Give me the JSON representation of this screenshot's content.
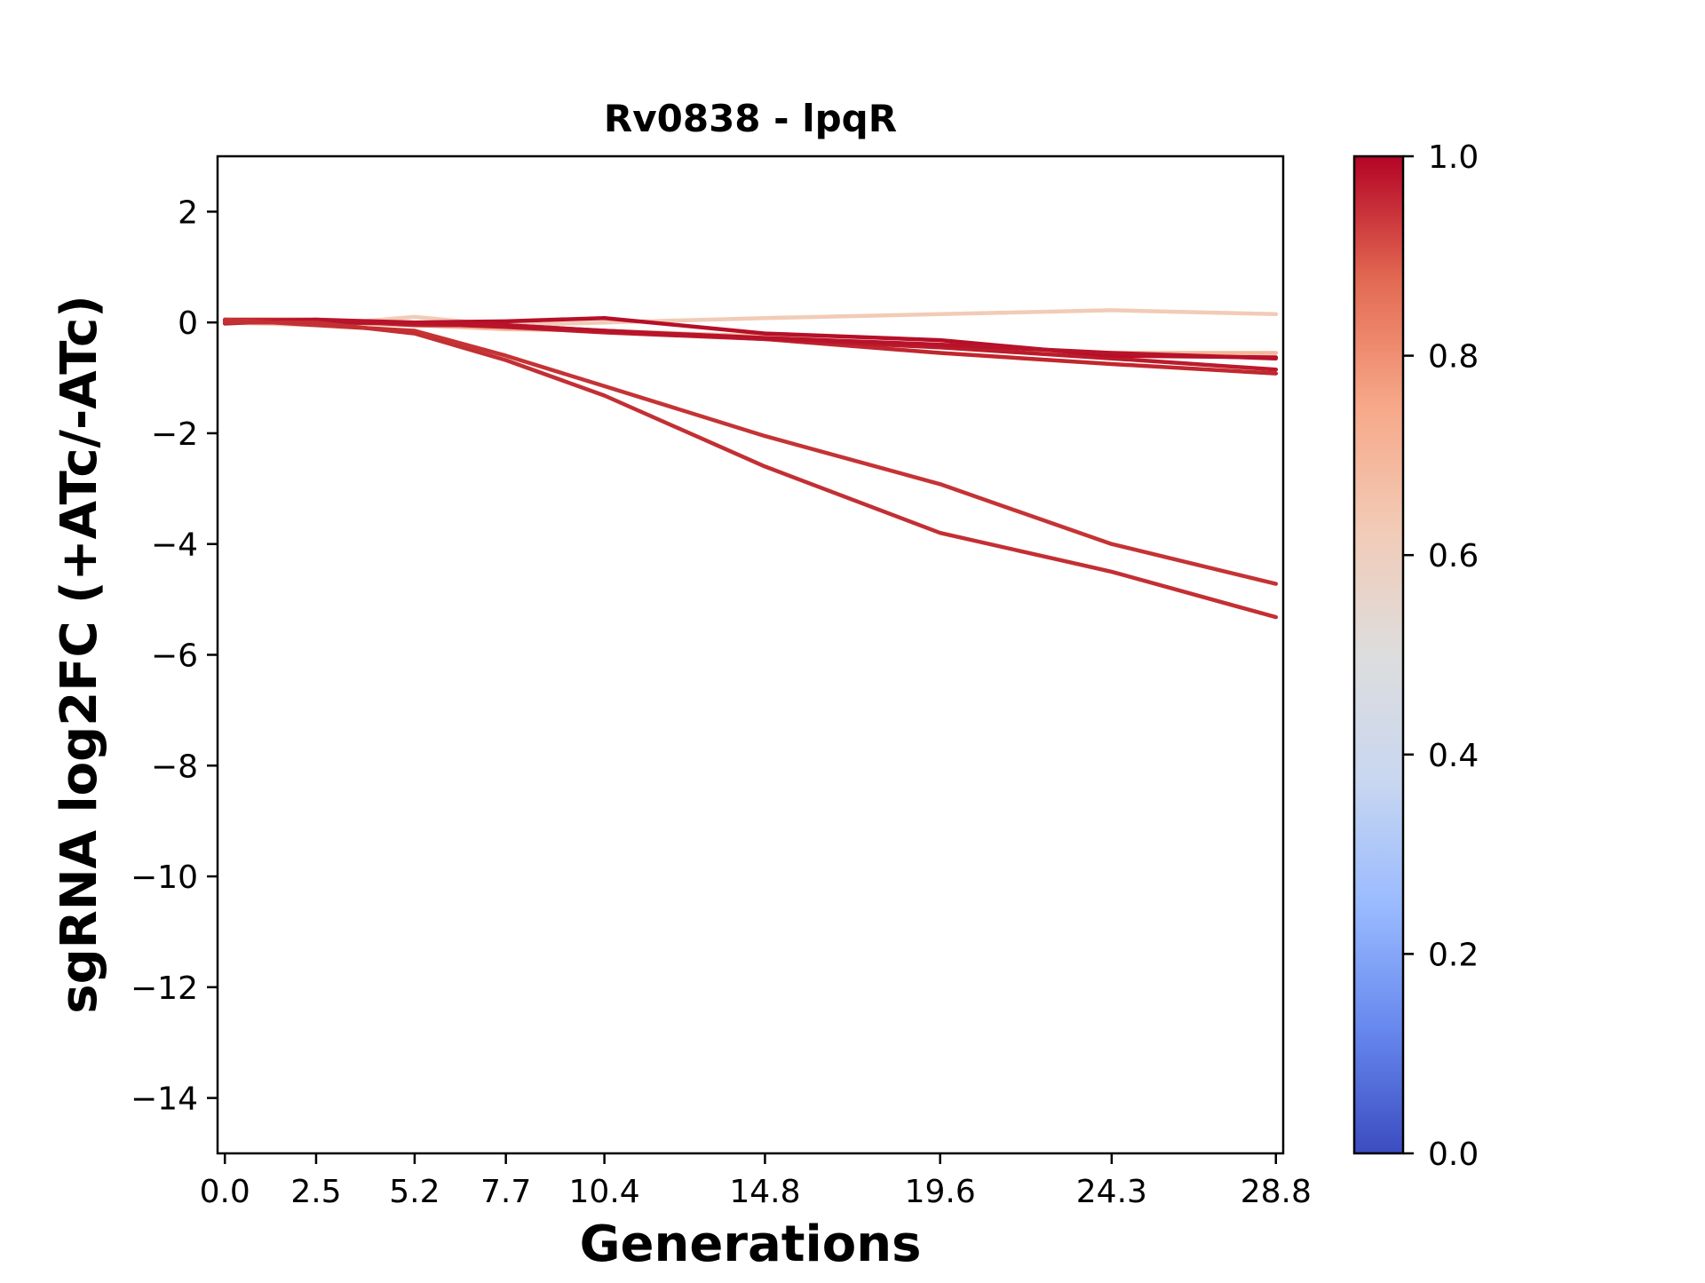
{
  "chart_data": {
    "type": "line",
    "title": "Rv0838 - lpqR",
    "xlabel": "Generations",
    "ylabel": "sgRNA log2FC (+ATc/-ATc)",
    "x": [
      0.0,
      2.5,
      5.2,
      7.7,
      10.4,
      14.8,
      19.6,
      24.3,
      28.8
    ],
    "x_tick_labels": [
      "0.0",
      "2.5",
      "5.2",
      "7.7",
      "10.4",
      "14.8",
      "19.6",
      "24.3",
      "28.8"
    ],
    "xlim": [
      -0.2,
      29.0
    ],
    "ylim": [
      -15,
      3
    ],
    "y_ticks": [
      2,
      0,
      -2,
      -4,
      -6,
      -8,
      -10,
      -12,
      -14
    ],
    "y_tick_labels": [
      "2",
      "0",
      "−2",
      "−4",
      "−6",
      "−8",
      "−10",
      "−12",
      "−14"
    ],
    "grid": false,
    "colorbar": {
      "range": [
        0,
        1
      ],
      "ticks": [
        0.0,
        0.2,
        0.4,
        0.6,
        0.8,
        1.0
      ],
      "tick_labels": [
        "0.0",
        "0.2",
        "0.4",
        "0.6",
        "0.8",
        "1.0"
      ],
      "colormap": "coolwarm",
      "stops": [
        "#3b4cc0",
        "#6788ee",
        "#9abbff",
        "#c9d7f0",
        "#dddddd",
        "#f2cbb7",
        "#f7a889",
        "#e36a53",
        "#b40426"
      ]
    },
    "series": [
      {
        "color_value": 0.62,
        "color": "#f2cbb7",
        "values": [
          0.0,
          -0.05,
          0.1,
          -0.05,
          0.0,
          0.08,
          0.15,
          0.22,
          0.15
        ]
      },
      {
        "color_value": 0.72,
        "color": "#f4b89c",
        "values": [
          0.02,
          0.0,
          -0.05,
          -0.12,
          -0.15,
          -0.25,
          -0.45,
          -0.55,
          -0.55
        ]
      },
      {
        "color_value": 0.95,
        "color": "#c1272e",
        "values": [
          0.05,
          0.05,
          -0.05,
          -0.05,
          -0.15,
          -0.3,
          -0.55,
          -0.75,
          -0.92
        ]
      },
      {
        "color_value": 0.97,
        "color": "#bb1b2b",
        "values": [
          0.03,
          0.0,
          -0.02,
          -0.08,
          -0.18,
          -0.3,
          -0.45,
          -0.65,
          -0.85
        ]
      },
      {
        "color_value": 0.99,
        "color": "#b60f28",
        "values": [
          0.0,
          0.02,
          0.0,
          0.02,
          0.08,
          -0.2,
          -0.32,
          -0.6,
          -0.63
        ]
      },
      {
        "color_value": 0.98,
        "color": "#b8132a",
        "values": [
          -0.02,
          0.05,
          0.0,
          -0.05,
          -0.15,
          -0.28,
          -0.4,
          -0.55,
          -0.65
        ]
      },
      {
        "color_value": 0.93,
        "color": "#c53334",
        "values": [
          0.05,
          -0.05,
          -0.15,
          -0.6,
          -1.15,
          -2.05,
          -2.92,
          -4.0,
          -4.72
        ]
      },
      {
        "color_value": 0.94,
        "color": "#c32f33",
        "values": [
          0.0,
          0.0,
          -0.2,
          -0.68,
          -1.32,
          -2.6,
          -3.8,
          -4.5,
          -5.32
        ]
      }
    ]
  }
}
